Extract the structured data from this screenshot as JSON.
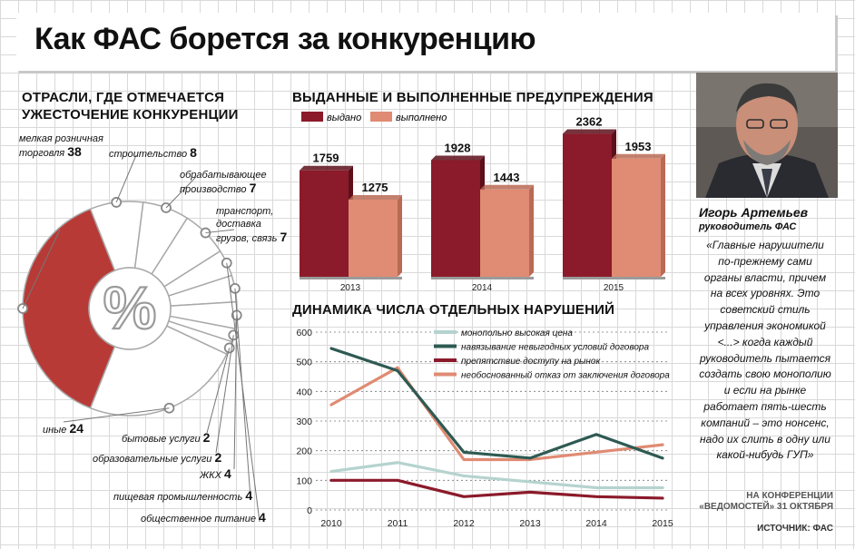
{
  "title": "Как ФАС борется за конкуренцию",
  "pie_title_line1": "ОТРАСЛИ, ГДЕ ОТМЕЧАЕТСЯ",
  "pie_title_line2": "УЖЕСТОЧЕНИЕ КОНКУРЕНЦИИ",
  "bars_title": "ВЫДАННЫЕ И ВЫПОЛНЕННЫЕ ПРЕДУПРЕЖДЕНИЯ",
  "lines_title": "ДИНАМИКА ЧИСЛА ОТДЕЛЬНЫХ НАРУШЕНИЙ",
  "person": {
    "name": "Игорь Артемьев",
    "role": "руководитель ФАС",
    "quote": "«Главные нарушители по-прежнему сами органы власти, причем на всех уровнях. Это советский стиль управления экономикой <...> когда каждый руководитель пытается создать свою монополию и если на рынке работает пять-шесть компаний – это нонсенс, надо их слить в одну или какой-нибудь ГУП»",
    "conf_line1": "НА КОНФЕРЕНЦИИ",
    "conf_line2": "«ВЕДОМОСТЕЙ» 31 ОКТЯБРЯ"
  },
  "source": "ИСТОЧНИК: ФАС",
  "colors": {
    "issued": "#8b1a2a",
    "done": "#e08b73",
    "pie_highlight": "#b83a36",
    "line_high_price": "#b5d3cf",
    "line_unfavorable": "#2e5a53",
    "line_access": "#8b1a2a",
    "line_refusal": "#e08b73"
  },
  "chart_data": [
    {
      "type": "pie",
      "center_label": "%",
      "slices": [
        {
          "label_line1": "мелкая розничная",
          "label_line2": "торговля",
          "value": 38
        },
        {
          "label_line1": "строительство",
          "label_line2": "",
          "value": 8
        },
        {
          "label_line1": "обрабатывающее",
          "label_line2": "производство",
          "value": 7
        },
        {
          "label_line1": "транспорт,",
          "label_line2": "доставка",
          "label_line3": "грузов, связь",
          "value": 7
        },
        {
          "label_line1": "общественное питание",
          "label_line2": "",
          "value": 4
        },
        {
          "label_line1": "пищевая промышленность",
          "label_line2": "",
          "value": 4
        },
        {
          "label_line1": "ЖКХ",
          "label_line2": "",
          "value": 4
        },
        {
          "label_line1": "образовательные услуги",
          "label_line2": "",
          "value": 2
        },
        {
          "label_line1": "бытовые услуги",
          "label_line2": "",
          "value": 2
        },
        {
          "label_line1": "иные",
          "label_line2": "",
          "value": 24
        }
      ]
    },
    {
      "type": "bar",
      "categories": [
        "2013",
        "2014",
        "2015"
      ],
      "series": [
        {
          "name": "выдано",
          "values": [
            1759,
            1928,
            2362
          ]
        },
        {
          "name": "выполнено",
          "values": [
            1275,
            1443,
            1953
          ]
        }
      ]
    },
    {
      "type": "line",
      "x": [
        "2010",
        "2011",
        "2012",
        "2013",
        "2014",
        "2015"
      ],
      "ylim": [
        0,
        600
      ],
      "yticks": [
        "0",
        "100",
        "200",
        "300",
        "400",
        "500",
        "600"
      ],
      "series": [
        {
          "name": "монопольно высокая цена",
          "values": [
            130,
            160,
            115,
            95,
            75,
            75
          ]
        },
        {
          "name": "навязывание невыгодных условий договора",
          "values": [
            545,
            470,
            195,
            175,
            255,
            175
          ]
        },
        {
          "name": "препятствие доступу на рынок",
          "values": [
            100,
            100,
            45,
            60,
            45,
            40
          ]
        },
        {
          "name": "необоснованный отказ от заключения договора",
          "values": [
            355,
            480,
            170,
            170,
            195,
            220
          ]
        }
      ]
    }
  ]
}
